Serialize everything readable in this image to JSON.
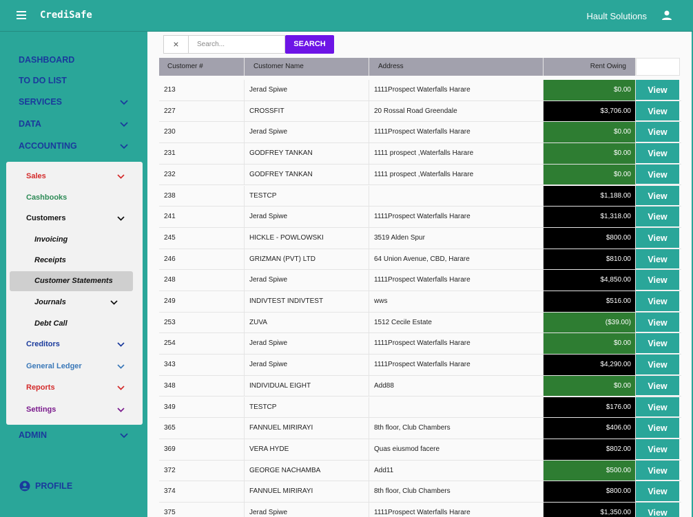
{
  "app": {
    "title": "CrediSafe",
    "company": "Hault Solutions"
  },
  "nav": [
    {
      "label": "DASHBOARD",
      "chevron": false
    },
    {
      "label": "TO DO LIST",
      "chevron": false
    },
    {
      "label": "SERVICES",
      "chevron": true
    },
    {
      "label": "DATA",
      "chevron": true
    },
    {
      "label": "ACCOUNTING",
      "chevron": true
    }
  ],
  "accounting_menu": [
    {
      "label": "Sales",
      "color": "#d42b2b",
      "chevron": true,
      "indent": false,
      "italic": false
    },
    {
      "label": "Cashbooks",
      "color": "#2e8b57",
      "chevron": false,
      "indent": false,
      "italic": false
    },
    {
      "label": "Customers",
      "color": "#111111",
      "chevron": true,
      "indent": false,
      "italic": false
    },
    {
      "label": "Invoicing",
      "color": "#111111",
      "chevron": false,
      "indent": true,
      "italic": true
    },
    {
      "label": "Receipts",
      "color": "#111111",
      "chevron": false,
      "indent": true,
      "italic": true
    },
    {
      "label": "Customer Statements",
      "color": "#111111",
      "chevron": false,
      "indent": true,
      "italic": true,
      "active": true
    },
    {
      "label": "Journals",
      "color": "#111111",
      "chevron": true,
      "indent": true,
      "italic": true
    },
    {
      "label": "Debt Call",
      "color": "#111111",
      "chevron": false,
      "indent": true,
      "italic": true
    },
    {
      "label": "Creditors",
      "color": "#1a3a9c",
      "chevron": true,
      "indent": false,
      "italic": false
    },
    {
      "label": "General Ledger",
      "color": "#3a78b8",
      "chevron": true,
      "indent": false,
      "italic": false
    },
    {
      "label": "Reports",
      "color": "#d42b2b",
      "chevron": true,
      "indent": false,
      "italic": false
    },
    {
      "label": "Settings",
      "color": "#7a1a8c",
      "chevron": true,
      "indent": false,
      "italic": false
    }
  ],
  "admin_label": "ADMIN",
  "profile_label": "PROFILE",
  "search": {
    "placeholder": "Search...",
    "button": "SEARCH",
    "clear": "×"
  },
  "table": {
    "headers": [
      "Customer #",
      "Customer Name",
      "Address",
      "Rent Owing"
    ],
    "view_label": "View",
    "rows": [
      {
        "num": "213",
        "name": "Jerad Spiwe",
        "address": "1111Prospect Waterfalls Harare",
        "owing": "$0.00",
        "status": "green"
      },
      {
        "num": "227",
        "name": "CROSSFIT",
        "address": "20 Rossal Road Greendale",
        "owing": "$3,706.00",
        "status": "black"
      },
      {
        "num": "230",
        "name": "Jerad Spiwe",
        "address": "1111Prospect Waterfalls Harare",
        "owing": "$0.00",
        "status": "green"
      },
      {
        "num": "231",
        "name": "GODFREY TANKAN",
        "address": "1111 prospect ,Waterfalls Harare",
        "owing": "$0.00",
        "status": "green"
      },
      {
        "num": "232",
        "name": "GODFREY TANKAN",
        "address": "1111 prospect ,Waterfalls Harare",
        "owing": "$0.00",
        "status": "green"
      },
      {
        "num": "238",
        "name": "TESTCP",
        "address": "",
        "owing": "$1,188.00",
        "status": "black"
      },
      {
        "num": "241",
        "name": "Jerad Spiwe",
        "address": "1111Prospect Waterfalls Harare",
        "owing": "$1,318.00",
        "status": "black"
      },
      {
        "num": "245",
        "name": "HICKLE - POWLOWSKI",
        "address": "3519 Alden Spur",
        "owing": "$800.00",
        "status": "black"
      },
      {
        "num": "246",
        "name": "GRIZMAN (PVT) LTD",
        "address": "64 Union Avenue, CBD, Harare",
        "owing": "$810.00",
        "status": "black"
      },
      {
        "num": "248",
        "name": "Jerad Spiwe",
        "address": "1111Prospect Waterfalls Harare",
        "owing": "$4,850.00",
        "status": "black"
      },
      {
        "num": "249",
        "name": "INDIVTEST INDIVTEST",
        "address": "wws",
        "owing": "$516.00",
        "status": "black"
      },
      {
        "num": "253",
        "name": "ZUVA",
        "address": "1512 Cecile Estate",
        "owing": "($39.00)",
        "status": "green"
      },
      {
        "num": "254",
        "name": "Jerad Spiwe",
        "address": "1111Prospect Waterfalls Harare",
        "owing": "$0.00",
        "status": "green"
      },
      {
        "num": "343",
        "name": "Jerad Spiwe",
        "address": "1111Prospect Waterfalls Harare",
        "owing": "$4,290.00",
        "status": "black"
      },
      {
        "num": "348",
        "name": "INDIVIDUAL EIGHT",
        "address": "Add88",
        "owing": "$0.00",
        "status": "green"
      },
      {
        "num": "349",
        "name": "TESTCP",
        "address": "",
        "owing": "$176.00",
        "status": "black"
      },
      {
        "num": "365",
        "name": "FANNUEL MIRIRAYI",
        "address": "8th floor, Club Chambers",
        "owing": "$406.00",
        "status": "black"
      },
      {
        "num": "369",
        "name": "VERA HYDE",
        "address": "Quas eiusmod facere",
        "owing": "$802.00",
        "status": "black"
      },
      {
        "num": "372",
        "name": "GEORGE NACHAMBA",
        "address": "Add11",
        "owing": "$500.00",
        "status": "green"
      },
      {
        "num": "374",
        "name": "FANNUEL MIRIRAYI",
        "address": "8th floor, Club Chambers",
        "owing": "$800.00",
        "status": "black"
      },
      {
        "num": "375",
        "name": "Jerad Spiwe",
        "address": "1111Prospect Waterfalls Harare",
        "owing": "$1,350.00",
        "status": "black"
      }
    ]
  }
}
